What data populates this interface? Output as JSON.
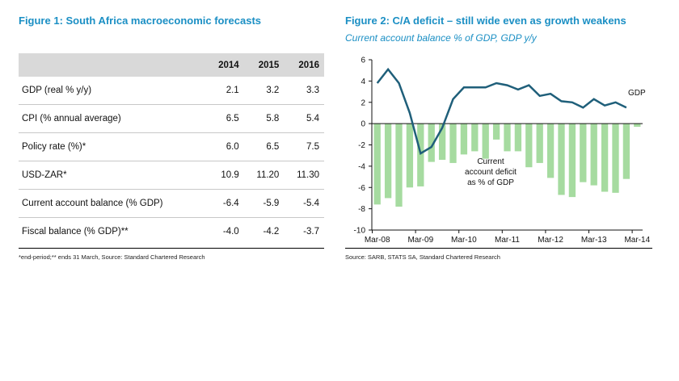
{
  "figure1": {
    "title": "Figure 1: South Africa macroeconomic forecasts",
    "columns": [
      "",
      "2014",
      "2015",
      "2016"
    ],
    "rows": [
      {
        "label": "GDP (real % y/y)",
        "values": [
          "2.1",
          "3.2",
          "3.3"
        ]
      },
      {
        "label": "CPI (% annual average)",
        "values": [
          "6.5",
          "5.8",
          "5.4"
        ]
      },
      {
        "label": "Policy rate (%)*",
        "values": [
          "6.0",
          "6.5",
          "7.5"
        ]
      },
      {
        "label": "USD-ZAR*",
        "values": [
          "10.9",
          "11.20",
          "11.30"
        ]
      },
      {
        "label": "Current account balance (% GDP)",
        "values": [
          "-6.4",
          "-5.9",
          "-5.4"
        ]
      },
      {
        "label": "Fiscal balance (% GDP)**",
        "values": [
          "-4.0",
          "-4.2",
          "-3.7"
        ]
      }
    ],
    "note": "*end-period;** ends 31 March, Source: Standard Chartered Research"
  },
  "figure2": {
    "title": "Figure 2: C/A deficit – still wide even as growth weakens",
    "subtitle": "Current account balance % of GDP, GDP y/y",
    "note": "Source: SARB, STATS SA, Standard Chartered Research"
  },
  "chart_data": {
    "type": "bar",
    "ylim": [
      -10,
      6
    ],
    "yticks": [
      -10,
      -8,
      -6,
      -4,
      -2,
      0,
      2,
      4,
      6
    ],
    "x_tick_labels": [
      "Mar-08",
      "Mar-09",
      "Mar-10",
      "Mar-11",
      "Mar-12",
      "Mar-13",
      "Mar-14"
    ],
    "quarters": 25,
    "grid": false,
    "series": [
      {
        "name": "Current account deficit as % of GDP",
        "kind": "bar",
        "color": "#a6dba0",
        "values": [
          -7.6,
          -7.0,
          -7.8,
          -6.0,
          -5.9,
          -3.6,
          -3.4,
          -3.7,
          -2.9,
          -2.6,
          -3.3,
          -1.5,
          -2.6,
          -2.6,
          -4.1,
          -3.7,
          -5.1,
          -6.7,
          -6.9,
          -5.5,
          -5.8,
          -6.4,
          -6.5,
          -5.2,
          -0.3
        ]
      },
      {
        "name": "GDP",
        "kind": "line",
        "color": "#1f5f7a",
        "values": [
          3.8,
          5.1,
          3.8,
          1.0,
          -2.8,
          -2.2,
          -0.4,
          2.3,
          3.4,
          3.4,
          3.4,
          3.8,
          3.6,
          3.2,
          3.6,
          2.6,
          2.8,
          2.1,
          2.0,
          1.5,
          2.3,
          1.7,
          2.0,
          1.5
        ]
      }
    ],
    "annotations": [
      "Current",
      "account deficit",
      "as % of GDP"
    ]
  }
}
